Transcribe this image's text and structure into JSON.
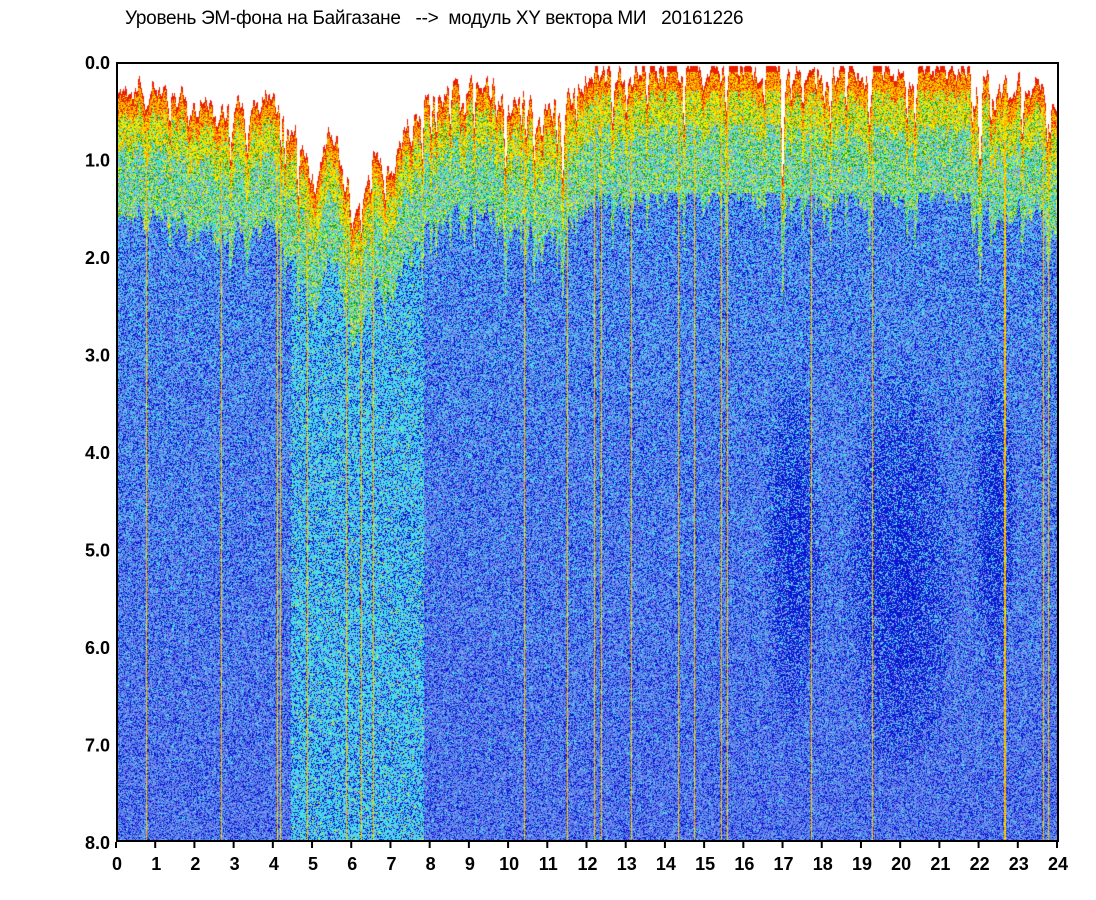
{
  "chart_data": {
    "type": "heatmap",
    "title": "Уровень ЭМ-фона на Байгазане   -->  модуль XY вектора МИ   20161226",
    "xlabel": "",
    "ylabel": "",
    "xlim": [
      0,
      24
    ],
    "ylim": [
      8.0,
      0.0
    ],
    "y_axis_inverted": true,
    "x_ticks": [
      "0",
      "1",
      "2",
      "3",
      "4",
      "5",
      "6",
      "7",
      "8",
      "9",
      "10",
      "11",
      "12",
      "13",
      "14",
      "15",
      "16",
      "17",
      "18",
      "19",
      "20",
      "21",
      "22",
      "23",
      "24"
    ],
    "y_ticks": [
      "0.0",
      "1.0",
      "2.0",
      "3.0",
      "4.0",
      "5.0",
      "6.0",
      "7.0",
      "8.0"
    ],
    "colorscale": [
      "#0a14d2",
      "#5a78e8",
      "#8aa0ee",
      "#44e2e6",
      "#14a014",
      "#f0f000",
      "#ffa000",
      "#e82000"
    ],
    "signal_edge_profile": [
      {
        "hour": 0,
        "edge": 0.2
      },
      {
        "hour": 1,
        "edge": 0.3
      },
      {
        "hour": 2,
        "edge": 0.4
      },
      {
        "hour": 3,
        "edge": 0.5
      },
      {
        "hour": 4,
        "edge": 0.35
      },
      {
        "hour": 4.5,
        "edge": 0.6
      },
      {
        "hour": 5,
        "edge": 1.2
      },
      {
        "hour": 5.5,
        "edge": 0.7
      },
      {
        "hour": 6,
        "edge": 1.6
      },
      {
        "hour": 6.5,
        "edge": 1.0
      },
      {
        "hour": 7,
        "edge": 1.1
      },
      {
        "hour": 7.5,
        "edge": 0.6
      },
      {
        "hour": 8,
        "edge": 0.3
      },
      {
        "hour": 9,
        "edge": 0.15
      },
      {
        "hour": 10,
        "edge": 0.4
      },
      {
        "hour": 11,
        "edge": 0.5
      },
      {
        "hour": 12,
        "edge": 0.1
      },
      {
        "hour": 14,
        "edge": 0.05
      },
      {
        "hour": 16,
        "edge": 0.05
      },
      {
        "hour": 18,
        "edge": 0.05
      },
      {
        "hour": 20,
        "edge": 0.05
      },
      {
        "hour": 22,
        "edge": 0.1
      },
      {
        "hour": 23,
        "edge": 0.2
      },
      {
        "hour": 24,
        "edge": 0.4
      }
    ],
    "dense_regions": [
      {
        "hour_from": 16.5,
        "hour_to": 18.0,
        "level_from": 3.0,
        "level_to": 7.0
      },
      {
        "hour_from": 18.5,
        "hour_to": 21.5,
        "level_from": 3.0,
        "level_to": 7.5
      },
      {
        "hour_from": 21.8,
        "hour_to": 23.0,
        "level_from": 3.0,
        "level_to": 6.5
      }
    ],
    "grid": false,
    "legend": "none"
  }
}
